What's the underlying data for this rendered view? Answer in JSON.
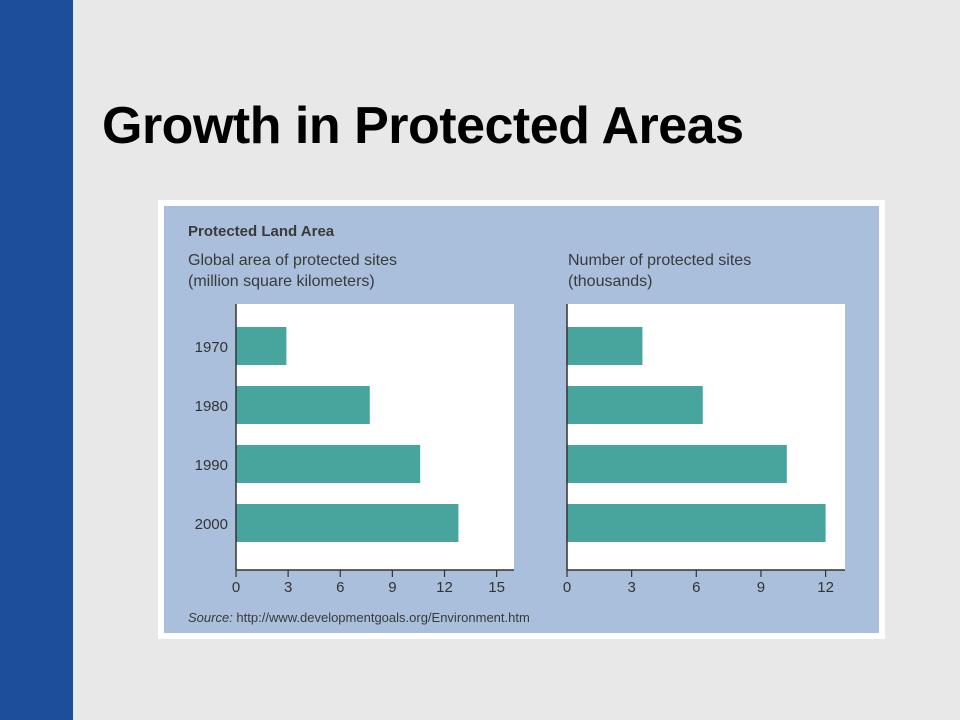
{
  "slide": {
    "title": "Growth in Protected Areas"
  },
  "colors": {
    "sidebar": "#1b4f9c",
    "panel": "#a9bfdb",
    "bar": "#47a59d"
  },
  "figure": {
    "heading": "Protected Land Area",
    "source_label": "Source:",
    "source_text": " http://www.developmentgoals.org/Environment.htm"
  },
  "chart_data": [
    {
      "type": "bar",
      "orientation": "horizontal",
      "title": "Global area of protected sites",
      "subtitle": "(million square kilometers)",
      "categories": [
        "1970",
        "1980",
        "1990",
        "2000"
      ],
      "values": [
        2.9,
        7.7,
        10.6,
        12.8
      ],
      "xlim": [
        0,
        16
      ],
      "xticks": [
        0,
        3,
        6,
        9,
        12,
        15
      ]
    },
    {
      "type": "bar",
      "orientation": "horizontal",
      "title": "Number of protected sites",
      "subtitle": "(thousands)",
      "categories": [
        "1970",
        "1980",
        "1990",
        "2000"
      ],
      "values": [
        3.5,
        6.3,
        10.2,
        12.0
      ],
      "xlim": [
        0,
        12.9
      ],
      "xticks": [
        0,
        3,
        6,
        9,
        12
      ]
    }
  ]
}
